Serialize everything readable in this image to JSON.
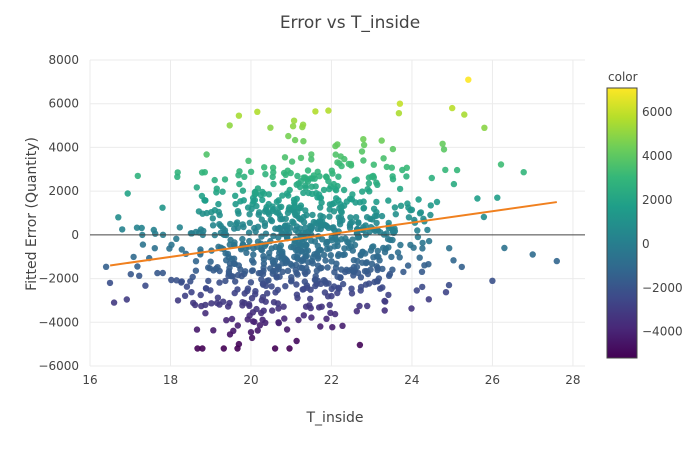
{
  "chart_data": {
    "type": "scatter",
    "title": "Error vs T_inside",
    "xlabel": "T_inside",
    "ylabel": "Fitted Error (Quantity)",
    "xlim": [
      16,
      28.3
    ],
    "ylim": [
      -6000,
      8000
    ],
    "xticks": [
      16,
      18,
      20,
      22,
      24,
      26,
      28
    ],
    "yticks": [
      -6000,
      -4000,
      -2000,
      0,
      2000,
      4000,
      6000,
      8000
    ],
    "xtick_labels": [
      "16",
      "18",
      "20",
      "22",
      "24",
      "26",
      "28"
    ],
    "ytick_labels": [
      "−6000",
      "−4000",
      "−2000",
      "0",
      "2000",
      "4000",
      "6000",
      "8000"
    ],
    "grid": true,
    "zero_line": true,
    "colorscale": "viridis",
    "colorbar": {
      "title": "color",
      "range": [
        -5200,
        7100
      ],
      "ticks": [
        -4000,
        -2000,
        0,
        2000,
        4000,
        6000
      ],
      "tick_labels": [
        "−4000",
        "−2000",
        "0",
        "2000",
        "4000",
        "6000"
      ]
    },
    "trendline": {
      "x": [
        16.5,
        27.6
      ],
      "y": [
        -1400,
        1500
      ],
      "color": "#f0801f"
    },
    "points_described": [
      {
        "x": 25.4,
        "y": 7100
      },
      {
        "x": 23.7,
        "y": 6000
      },
      {
        "x": 25.0,
        "y": 5800
      },
      {
        "x": 25.3,
        "y": 5500
      },
      {
        "x": 19.7,
        "y": 5450
      },
      {
        "x": 21.6,
        "y": 5650
      },
      {
        "x": 25.8,
        "y": 4900
      },
      {
        "x": 20.6,
        "y": -5200
      },
      {
        "x": 19.7,
        "y": -5000
      },
      {
        "x": 27.6,
        "y": -1200
      },
      {
        "x": 27.0,
        "y": -900
      },
      {
        "x": 26.0,
        "y": -2100
      },
      {
        "x": 16.6,
        "y": -3100
      },
      {
        "x": 16.8,
        "y": 250
      },
      {
        "x": 17.3,
        "y": 0
      }
    ],
    "cloud": {
      "count": 900,
      "center_x": 21.3,
      "sd_x": 1.7,
      "slope": 262,
      "intercept": -5700,
      "sd_y": 2000
    }
  }
}
